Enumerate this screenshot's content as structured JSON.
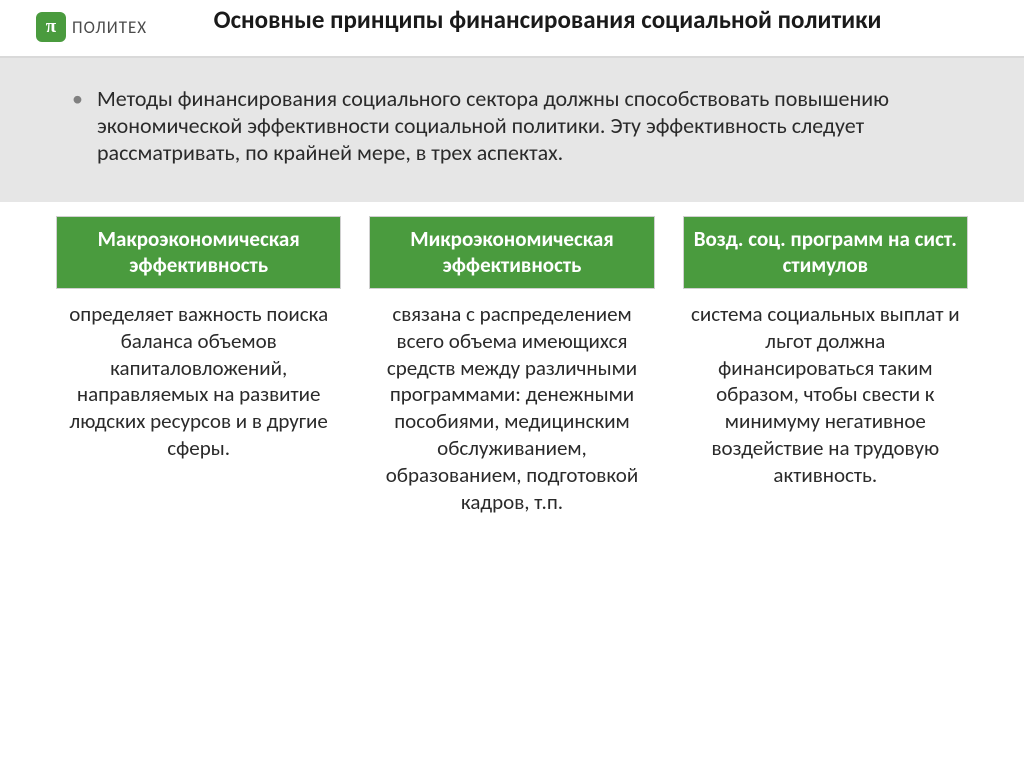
{
  "logo": {
    "symbol": "π",
    "text": "ПОЛИТЕХ"
  },
  "title": "Основные принципы финансирования социальной политики",
  "intro": "Методы финансирования социального сектора должны способствовать повышению экономической эффективности социальной политики. Эту эффективность следует рассматривать, по крайней мере, в трех аспектах.",
  "columns": [
    {
      "header": "Макроэкономическая эффективность",
      "body": "определяет важность поиска баланса объемов капиталовложений, направляемых на развитие людских ресурсов и в другие сферы."
    },
    {
      "header": "Микроэкономическая эффективность",
      "body": "связана с распределением всего объема имеющихся средств между различными программами: денежными пособиями, медицинским обслуживанием, образованием, подготовкой кадров, т.п."
    },
    {
      "header": "Возд. соц. программ на сист. стимулов",
      "body": "система социальных выплат и льгот должна финансироваться таким образом, чтобы свести к минимуму негативное воздействие на трудовую активность."
    }
  ],
  "styles": {
    "accent_color": "#4a9b3e",
    "band_bg": "#e6e6e6",
    "title_fontsize": 25,
    "intro_fontsize": 22,
    "header_fontsize": 21,
    "body_fontsize": 21
  }
}
